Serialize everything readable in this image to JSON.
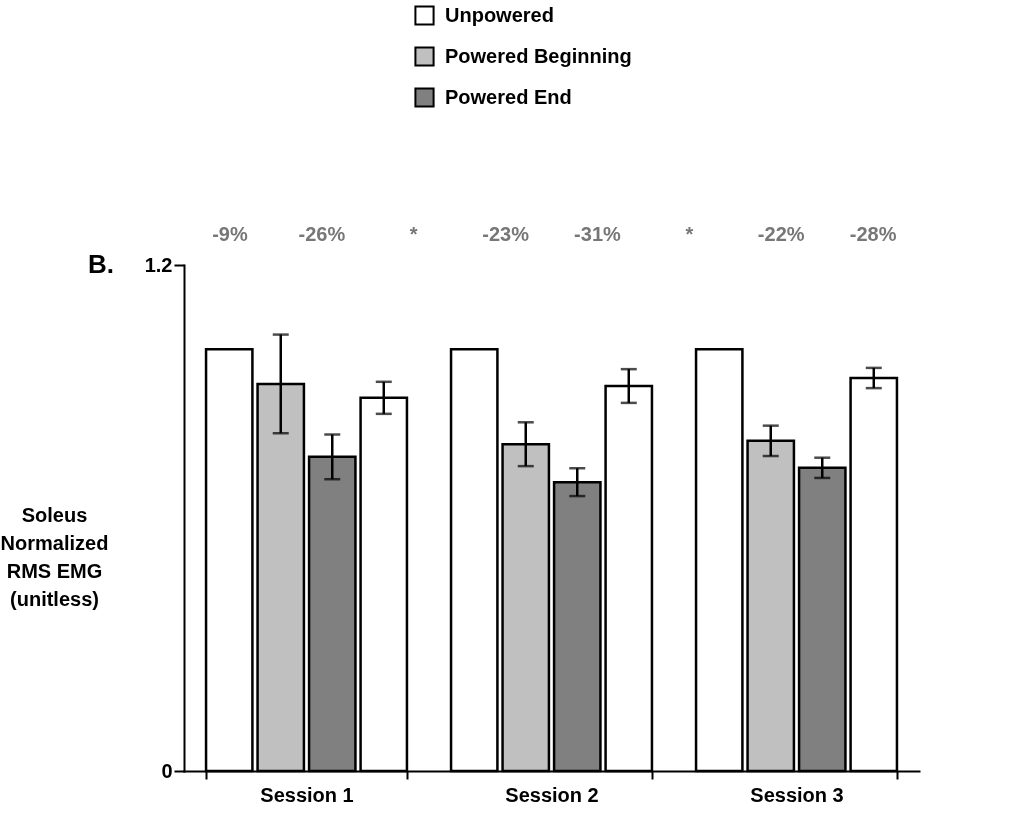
{
  "chart_data": {
    "type": "bar",
    "title": "B.",
    "ylabel": "Soleus\nNormalized\nRMS EMG\n(unitless)",
    "categories": [
      "Session 1",
      "Session 2",
      "Session 3"
    ],
    "series": [
      {
        "name": "Unpowered",
        "color": "#ffffff",
        "values": [
          1.0,
          1.0,
          1.0
        ]
      },
      {
        "name": "Powered Beginning",
        "color": "#c0c0c0",
        "values": [
          0.918,
          0.775,
          0.783
        ],
        "errors": [
          0.117,
          0.052,
          0.036
        ]
      },
      {
        "name": "Powered End",
        "color": "#808080",
        "values": [
          0.745,
          0.685,
          0.719
        ],
        "errors": [
          0.053,
          0.033,
          0.024
        ]
      },
      {
        "color": "#ffffff",
        "values": [
          0.885,
          0.913,
          0.932
        ],
        "errors": [
          0.038,
          0.04,
          0.024
        ]
      }
    ],
    "ylim": [
      0,
      1.2
    ],
    "yticks": [
      0,
      1.2
    ],
    "grid": false,
    "legend": "top",
    "annotations": [
      "-9%",
      "-26%",
      "*",
      "-23%",
      "-31%",
      "*",
      "-22%",
      "-28%"
    ]
  }
}
